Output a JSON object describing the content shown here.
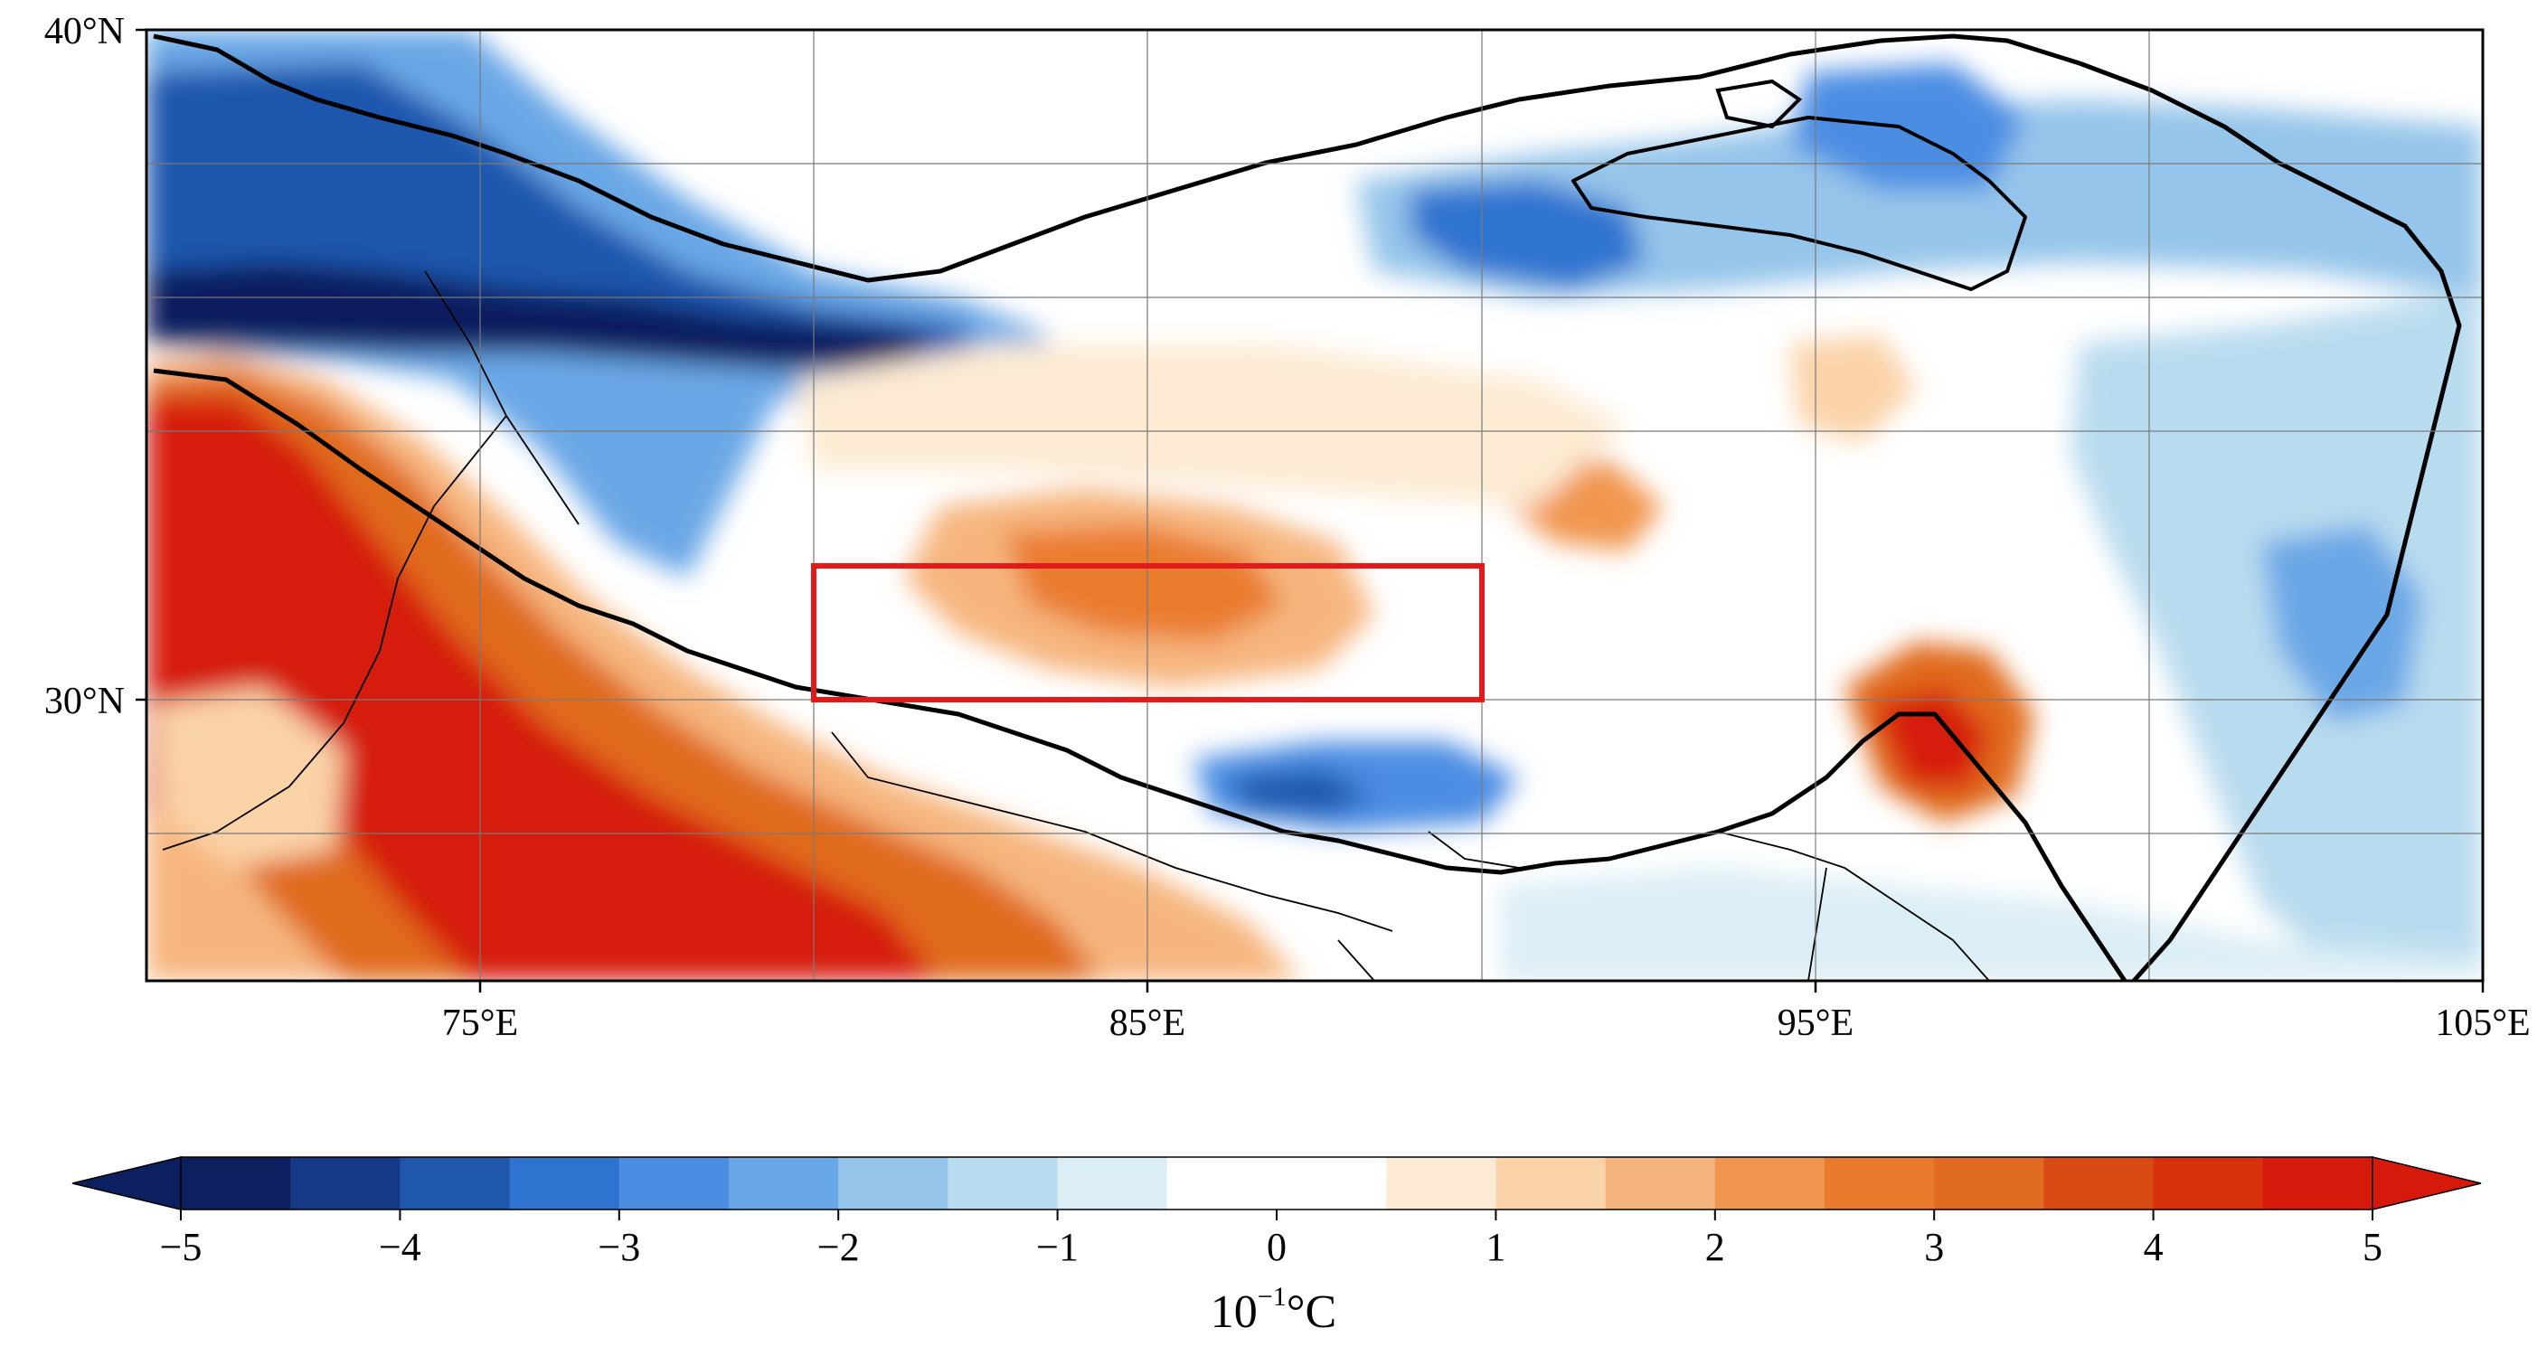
{
  "map": {
    "lon_range": [
      70,
      105
    ],
    "lat_range": [
      25.8,
      40
    ],
    "lon_ticks": [
      {
        "value": 75,
        "label": "75°E"
      },
      {
        "value": 85,
        "label": "85°E"
      },
      {
        "value": 95,
        "label": "95°E"
      },
      {
        "value": 105,
        "label": "105°E"
      }
    ],
    "lat_ticks": [
      {
        "value": 40,
        "label": "40°N"
      },
      {
        "value": 30,
        "label": "30°N"
      }
    ],
    "gridlines_lon": [
      75,
      80,
      85,
      90,
      95,
      100
    ],
    "gridlines_lat": [
      38,
      36,
      34,
      30,
      28
    ],
    "highlight_box": {
      "lon": [
        80,
        90
      ],
      "lat": [
        30,
        32
      ],
      "color": "#e31a1c"
    }
  },
  "colorbar": {
    "ticks": [
      "−5",
      "−4",
      "−3",
      "−2",
      "−1",
      "0",
      "1",
      "2",
      "3",
      "4",
      "5"
    ],
    "units_base": "10",
    "units_exp": "−1",
    "units_suffix": "°C",
    "colors": [
      "#0c1f5e",
      "#163a86",
      "#1f57ad",
      "#2f73d0",
      "#4b8de3",
      "#6aa7e6",
      "#95c5ea",
      "#b9dbef",
      "#dbeef5",
      "#ffffff",
      "#ffffff",
      "#fdebd3",
      "#fbd3a8",
      "#f6b57e",
      "#f19650",
      "#ea7b2d",
      "#e06a1f",
      "#d84a13",
      "#d8320d",
      "#d51a0b"
    ]
  }
}
